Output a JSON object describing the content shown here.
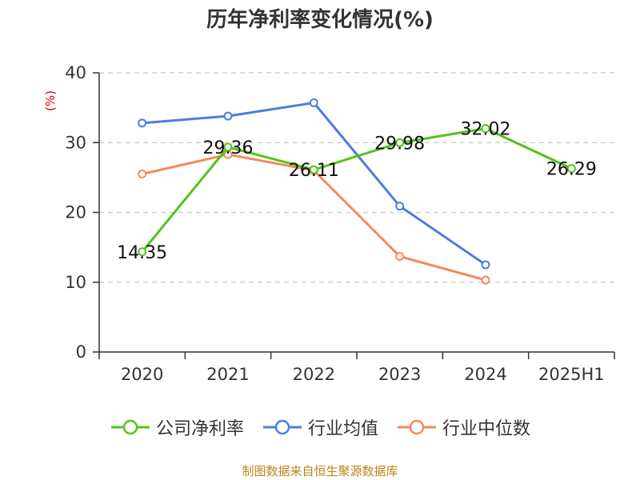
{
  "title": "历年净利率变化情况(%)",
  "source": "制图数据来自恒生聚源数据库",
  "chart_data": {
    "type": "line",
    "title": "历年净利率变化情况(%)",
    "xlabel": "",
    "ylabel": "(%)",
    "ylim": [
      0,
      40
    ],
    "yticks": [
      0,
      10,
      20,
      30,
      40
    ],
    "grid": true,
    "legend_position": "bottom",
    "categories": [
      "2020",
      "2021",
      "2022",
      "2023",
      "2024",
      "2025H1"
    ],
    "series": [
      {
        "name": "公司净利率",
        "color": "#52c41a",
        "values": [
          14.35,
          29.36,
          26.11,
          29.98,
          32.02,
          26.29
        ],
        "labels": [
          "14.35",
          "29.36",
          "26.11",
          "29.98",
          "32.02",
          "26.29"
        ]
      },
      {
        "name": "行业均值",
        "color": "#4a7fdc",
        "values": [
          32.8,
          33.8,
          35.7,
          20.9,
          12.5,
          null
        ]
      },
      {
        "name": "行业中位数",
        "color": "#f58a5a",
        "values": [
          25.5,
          28.3,
          26.0,
          13.7,
          10.3,
          null
        ]
      }
    ]
  }
}
